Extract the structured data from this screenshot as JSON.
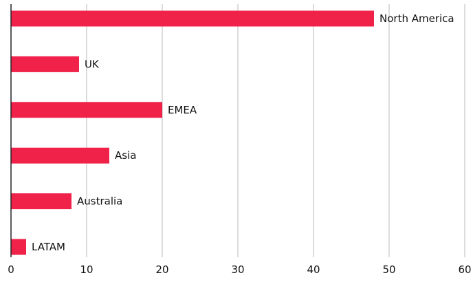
{
  "chart_data": {
    "type": "bar",
    "orientation": "horizontal",
    "categories": [
      "North America",
      "UK",
      "EMEA",
      "Asia",
      "Australia",
      "LATAM"
    ],
    "values": [
      48,
      9,
      20,
      13,
      8,
      2
    ],
    "xlim": [
      0,
      60
    ],
    "x_ticks": [
      0,
      10,
      20,
      30,
      40,
      50,
      60
    ],
    "title": "",
    "xlabel": "",
    "ylabel": "",
    "grid": "vertical",
    "legend": "none",
    "label_placement": "end-of-bar",
    "colors": {
      "bar": "#F0224A",
      "grid": "#DCDCDC",
      "axis": "#222222",
      "text": "#111111"
    }
  }
}
